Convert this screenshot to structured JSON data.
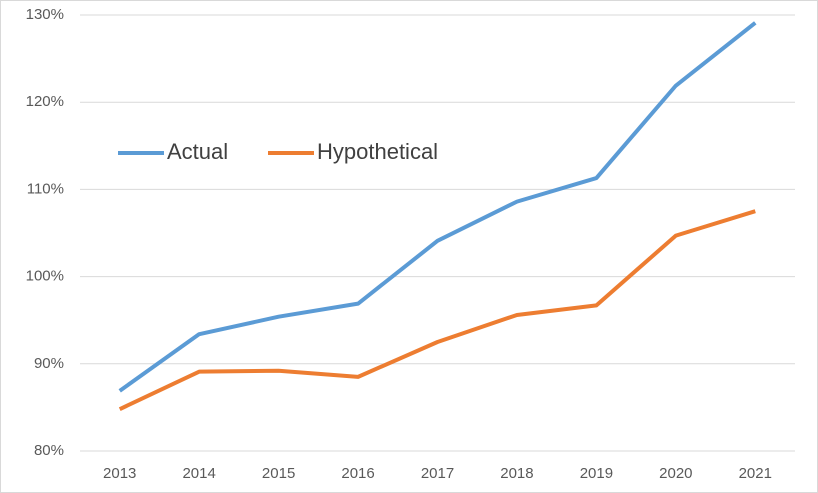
{
  "chart_data": {
    "type": "line",
    "categories": [
      "2013",
      "2014",
      "2015",
      "2016",
      "2017",
      "2018",
      "2019",
      "2020",
      "2021"
    ],
    "series": [
      {
        "name": "Actual",
        "color": "#5b9bd5",
        "values": [
          86.9,
          93.4,
          95.4,
          96.9,
          104.1,
          108.6,
          111.3,
          121.9,
          129.1
        ]
      },
      {
        "name": "Hypothetical",
        "color": "#ed7d31",
        "values": [
          84.8,
          89.1,
          89.2,
          88.5,
          92.5,
          95.6,
          96.7,
          104.7,
          107.5
        ]
      }
    ],
    "ylim": [
      80,
      130
    ],
    "yticks": [
      {
        "value": 80,
        "label": "80%"
      },
      {
        "value": 90,
        "label": "90%"
      },
      {
        "value": 100,
        "label": "100%"
      },
      {
        "value": 110,
        "label": "110%"
      },
      {
        "value": 120,
        "label": "120%"
      },
      {
        "value": 130,
        "label": "130%"
      }
    ],
    "grid": true
  }
}
